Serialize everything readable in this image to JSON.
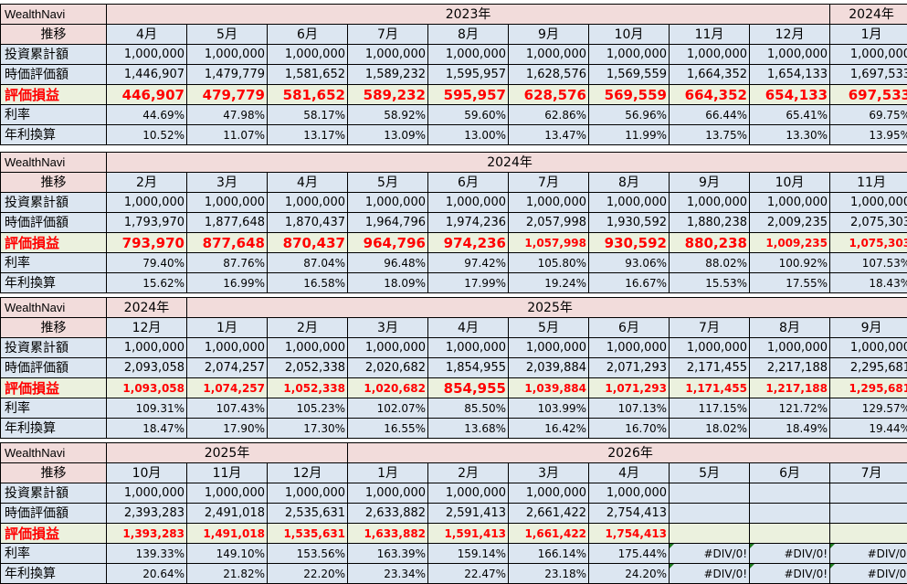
{
  "labels": {
    "brand": "WealthNavi",
    "trend": "推移",
    "invested": "投資累計額",
    "market_value": "時価評価額",
    "profit": "評価損益",
    "rate": "利率",
    "annualized": "年利換算"
  },
  "blocks": [
    {
      "years": [
        {
          "label": "2023年",
          "span": 9
        },
        {
          "label": "2024年",
          "span": 1
        }
      ],
      "months": [
        "4月",
        "5月",
        "6月",
        "7月",
        "8月",
        "9月",
        "10月",
        "11月",
        "12月",
        "1月"
      ],
      "invested": [
        "1,000,000",
        "1,000,000",
        "1,000,000",
        "1,000,000",
        "1,000,000",
        "1,000,000",
        "1,000,000",
        "1,000,000",
        "1,000,000",
        "1,000,000"
      ],
      "market_value": [
        "1,446,907",
        "1,479,779",
        "1,581,652",
        "1,589,232",
        "1,595,957",
        "1,628,576",
        "1,569,559",
        "1,664,352",
        "1,654,133",
        "1,697,533"
      ],
      "profit": [
        "446,907",
        "479,779",
        "581,652",
        "589,232",
        "595,957",
        "628,576",
        "569,559",
        "664,352",
        "654,133",
        "697,533"
      ],
      "rate": [
        "44.69%",
        "47.98%",
        "58.17%",
        "58.92%",
        "59.60%",
        "62.86%",
        "56.96%",
        "66.44%",
        "65.41%",
        "69.75%"
      ],
      "annualized": [
        "10.52%",
        "11.07%",
        "13.17%",
        "13.09%",
        "13.00%",
        "13.47%",
        "11.99%",
        "13.75%",
        "13.30%",
        "13.95%"
      ]
    },
    {
      "years": [
        {
          "label": "2024年",
          "span": 10
        }
      ],
      "months": [
        "2月",
        "3月",
        "4月",
        "5月",
        "6月",
        "7月",
        "8月",
        "9月",
        "10月",
        "11月"
      ],
      "invested": [
        "1,000,000",
        "1,000,000",
        "1,000,000",
        "1,000,000",
        "1,000,000",
        "1,000,000",
        "1,000,000",
        "1,000,000",
        "1,000,000",
        "1,000,000"
      ],
      "market_value": [
        "1,793,970",
        "1,877,648",
        "1,870,437",
        "1,964,796",
        "1,974,236",
        "2,057,998",
        "1,930,592",
        "1,880,238",
        "2,009,235",
        "2,075,303"
      ],
      "profit": [
        "793,970",
        "877,648",
        "870,437",
        "964,796",
        "974,236",
        "1,057,998",
        "930,592",
        "880,238",
        "1,009,235",
        "1,075,303"
      ],
      "rate": [
        "79.40%",
        "87.76%",
        "87.04%",
        "96.48%",
        "97.42%",
        "105.80%",
        "93.06%",
        "88.02%",
        "100.92%",
        "107.53%"
      ],
      "annualized": [
        "15.62%",
        "16.99%",
        "16.58%",
        "18.09%",
        "17.99%",
        "19.24%",
        "16.67%",
        "15.53%",
        "17.55%",
        "18.43%"
      ]
    },
    {
      "years": [
        {
          "label": "2024年",
          "span": 1
        },
        {
          "label": "2025年",
          "span": 9
        }
      ],
      "months": [
        "12月",
        "1月",
        "2月",
        "3月",
        "4月",
        "5月",
        "6月",
        "7月",
        "8月",
        "9月"
      ],
      "invested": [
        "1,000,000",
        "1,000,000",
        "1,000,000",
        "1,000,000",
        "1,000,000",
        "1,000,000",
        "1,000,000",
        "1,000,000",
        "1,000,000",
        "1,000,000"
      ],
      "market_value": [
        "2,093,058",
        "2,074,257",
        "2,052,338",
        "2,020,682",
        "1,854,955",
        "2,039,884",
        "2,071,293",
        "2,171,455",
        "2,217,188",
        "2,295,681"
      ],
      "profit": [
        "1,093,058",
        "1,074,257",
        "1,052,338",
        "1,020,682",
        "854,955",
        "1,039,884",
        "1,071,293",
        "1,171,455",
        "1,217,188",
        "1,295,681"
      ],
      "rate": [
        "109.31%",
        "107.43%",
        "105.23%",
        "102.07%",
        "85.50%",
        "103.99%",
        "107.13%",
        "117.15%",
        "121.72%",
        "129.57%"
      ],
      "annualized": [
        "18.47%",
        "17.90%",
        "17.30%",
        "16.55%",
        "13.68%",
        "16.42%",
        "16.70%",
        "18.02%",
        "18.49%",
        "19.44%"
      ]
    },
    {
      "years": [
        {
          "label": "2025年",
          "span": 3
        },
        {
          "label": "2026年",
          "span": 7
        }
      ],
      "months": [
        "10月",
        "11月",
        "12月",
        "1月",
        "2月",
        "3月",
        "4月",
        "5月",
        "6月",
        "7月"
      ],
      "invested": [
        "1,000,000",
        "1,000,000",
        "1,000,000",
        "1,000,000",
        "1,000,000",
        "1,000,000",
        "1,000,000",
        "",
        "",
        ""
      ],
      "market_value": [
        "2,393,283",
        "2,491,018",
        "2,535,631",
        "2,633,882",
        "2,591,413",
        "2,661,422",
        "2,754,413",
        "",
        "",
        ""
      ],
      "profit": [
        "1,393,283",
        "1,491,018",
        "1,535,631",
        "1,633,882",
        "1,591,413",
        "1,661,422",
        "1,754,413",
        "",
        "",
        ""
      ],
      "rate": [
        "139.33%",
        "149.10%",
        "153.56%",
        "163.39%",
        "159.14%",
        "166.14%",
        "175.44%",
        "#DIV/0!",
        "#DIV/0!",
        "#DIV/0!"
      ],
      "annualized": [
        "20.64%",
        "21.82%",
        "22.20%",
        "23.34%",
        "22.47%",
        "23.18%",
        "24.20%",
        "#DIV/0!",
        "#DIV/0!",
        "#DIV/0!"
      ]
    }
  ]
}
